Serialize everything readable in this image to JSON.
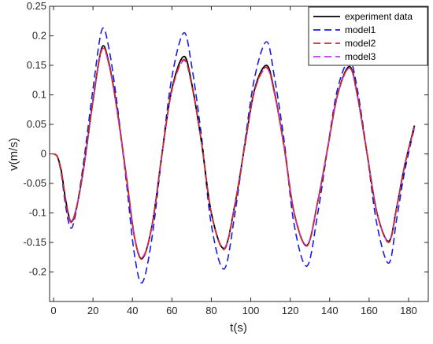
{
  "chart_data": {
    "type": "line",
    "xlabel": "t(s)",
    "ylabel": "v(m/s)",
    "xlim": [
      -2,
      190
    ],
    "ylim": [
      -0.25,
      0.25
    ],
    "xticks": [
      0,
      20,
      40,
      60,
      80,
      100,
      120,
      140,
      160,
      180
    ],
    "yticks": [
      -0.2,
      -0.15,
      -0.1,
      -0.05,
      0,
      0.05,
      0.1,
      0.15,
      0.2,
      0.25
    ],
    "xtick_labels": [
      "0",
      "20",
      "40",
      "60",
      "80",
      "100",
      "120",
      "140",
      "160",
      "180"
    ],
    "ytick_labels": [
      "-0.2",
      "-0.15",
      "-0.1",
      "-0.05",
      "0",
      "0.05",
      "0.1",
      "0.15",
      "0.2",
      "0.25"
    ],
    "grid": false,
    "legend_position": "top-right",
    "series": [
      {
        "name": "experiment data",
        "color": "#000000",
        "dash": "solid",
        "x": [
          0,
          2,
          4,
          6,
          8.5,
          11,
          15,
          20,
          24.5,
          28,
          32,
          37,
          41,
          45,
          50,
          55,
          60,
          66,
          70,
          75,
          80,
          86.5,
          92,
          97,
          102,
          108,
          112,
          117,
          122,
          128.5,
          134,
          139,
          144,
          150,
          154,
          159,
          164,
          170,
          174,
          178,
          183
        ],
        "y": [
          0,
          -0.005,
          -0.03,
          -0.075,
          -0.113,
          -0.1,
          -0.03,
          0.09,
          0.18,
          0.155,
          0.08,
          -0.04,
          -0.14,
          -0.177,
          -0.12,
          0.0,
          0.11,
          0.165,
          0.12,
          0.02,
          -0.1,
          -0.16,
          -0.085,
          0.015,
          0.11,
          0.15,
          0.105,
          0.01,
          -0.1,
          -0.155,
          -0.08,
          0.01,
          0.1,
          0.148,
          0.1,
          0.0,
          -0.1,
          -0.148,
          -0.09,
          -0.02,
          0.048
        ]
      },
      {
        "name": "model1",
        "color": "#1a1ae6",
        "dash": "dashed",
        "x": [
          0,
          2,
          4,
          6,
          8.5,
          11,
          15,
          20,
          24.5,
          28,
          32,
          37,
          41,
          45,
          50,
          55,
          60,
          66,
          70,
          75,
          80,
          86.5,
          92,
          97,
          102,
          108,
          112,
          117,
          122,
          128.5,
          134,
          139,
          144,
          150,
          154,
          159,
          164,
          170,
          174,
          178,
          183
        ],
        "y": [
          0,
          -0.005,
          -0.035,
          -0.085,
          -0.125,
          -0.105,
          -0.02,
          0.11,
          0.21,
          0.18,
          0.09,
          -0.05,
          -0.17,
          -0.218,
          -0.14,
          0.0,
          0.13,
          0.205,
          0.15,
          0.03,
          -0.12,
          -0.195,
          -0.1,
          0.02,
          0.13,
          0.19,
          0.13,
          0.02,
          -0.12,
          -0.19,
          -0.1,
          0.01,
          0.11,
          0.158,
          0.11,
          0.0,
          -0.12,
          -0.185,
          -0.11,
          -0.03,
          0.045
        ]
      },
      {
        "name": "model2",
        "color": "#d62a1c",
        "dash": "dashed",
        "x": [
          0,
          2,
          4,
          6,
          8.5,
          11,
          15,
          20,
          24.5,
          28,
          32,
          37,
          41,
          45,
          50,
          55,
          60,
          66,
          70,
          75,
          80,
          86.5,
          92,
          97,
          102,
          108,
          112,
          117,
          122,
          128.5,
          134,
          139,
          144,
          150,
          154,
          159,
          164,
          170,
          174,
          178,
          183
        ],
        "y": [
          0,
          -0.005,
          -0.03,
          -0.075,
          -0.115,
          -0.1,
          -0.03,
          0.09,
          0.178,
          0.153,
          0.078,
          -0.04,
          -0.14,
          -0.178,
          -0.121,
          0.0,
          0.108,
          0.16,
          0.118,
          0.02,
          -0.1,
          -0.162,
          -0.086,
          0.015,
          0.108,
          0.147,
          0.103,
          0.01,
          -0.1,
          -0.156,
          -0.081,
          0.01,
          0.1,
          0.146,
          0.1,
          0.0,
          -0.1,
          -0.15,
          -0.091,
          -0.02,
          0.046
        ]
      },
      {
        "name": "model3",
        "color": "#cc33ee",
        "dash": "dashed",
        "x": [
          0,
          2,
          4,
          6,
          8.5,
          11,
          15,
          20,
          24.5,
          28,
          32,
          37,
          41,
          45,
          50,
          55,
          60,
          66,
          70,
          75,
          80,
          86.5,
          92,
          97,
          102,
          108,
          112,
          117,
          122,
          128.5,
          134,
          139,
          144,
          150,
          154,
          159,
          164,
          170,
          174,
          178,
          183
        ],
        "y": [
          0,
          -0.005,
          -0.03,
          -0.074,
          -0.112,
          -0.099,
          -0.03,
          0.09,
          0.176,
          0.152,
          0.078,
          -0.04,
          -0.139,
          -0.175,
          -0.12,
          0.0,
          0.107,
          0.158,
          0.117,
          0.02,
          -0.1,
          -0.16,
          -0.085,
          0.015,
          0.107,
          0.145,
          0.102,
          0.01,
          -0.1,
          -0.154,
          -0.08,
          0.01,
          0.1,
          0.145,
          0.1,
          0.0,
          -0.1,
          -0.149,
          -0.09,
          -0.02,
          0.045
        ]
      }
    ]
  }
}
